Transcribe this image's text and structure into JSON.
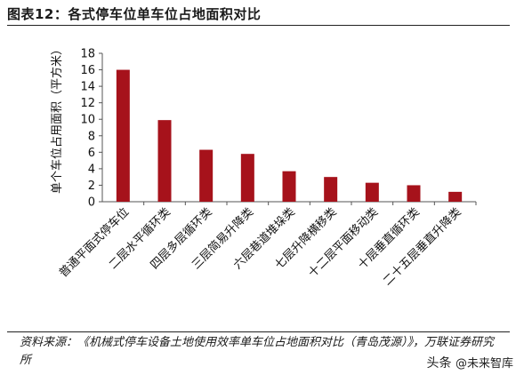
{
  "title": "图表12：各式停车位单车位占地面积对比",
  "chart_data": {
    "type": "bar",
    "title": "",
    "xlabel": "",
    "ylabel": "单个车位占用面积（平方米）",
    "ylim": [
      0,
      18
    ],
    "yticks": [
      0,
      2,
      4,
      6,
      8,
      10,
      12,
      14,
      16,
      18
    ],
    "categories": [
      "普通平面式停车位",
      "二层水平循环类",
      "四层多层循环类",
      "三层简易升降类",
      "六层巷道堆垛类",
      "七层升降横移类",
      "十二层平面移动类",
      "十层垂直循环类",
      "二十五层垂直升降类"
    ],
    "values": [
      16,
      9.9,
      6.3,
      5.8,
      3.7,
      3.0,
      2.3,
      2.0,
      1.2
    ],
    "bar_color": "#a6121b",
    "grid": false,
    "legend": "none"
  },
  "source": "资料来源：《机械式停车设备土地使用效率单车位占地面积对比（青岛茂源）》，万联证券研究所",
  "watermark": {
    "prefix": "头条",
    "handle": "@未来智库"
  }
}
